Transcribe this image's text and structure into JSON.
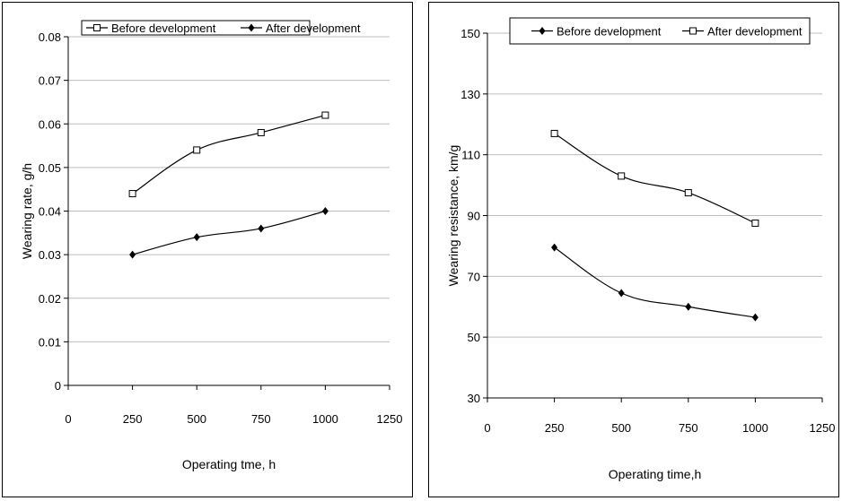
{
  "chart_data": [
    {
      "type": "line",
      "xlabel": "Operating tme, h",
      "ylabel": "Wearing rate, g/h",
      "xlim": [
        0,
        1250
      ],
      "ylim": [
        0,
        0.08
      ],
      "x_ticks": [
        "0",
        "250",
        "500",
        "750",
        "1000",
        "1250"
      ],
      "y_ticks": [
        "0",
        "0.01",
        "0.02",
        "0.03",
        "0.04",
        "0.05",
        "0.06",
        "0.07",
        "0.08"
      ],
      "grid": "horizontal",
      "legend_position": "top",
      "series": [
        {
          "name": "Before development",
          "marker": "open-square",
          "x": [
            250,
            500,
            750,
            1000
          ],
          "values": [
            0.044,
            0.054,
            0.058,
            0.062
          ]
        },
        {
          "name": "After development",
          "marker": "filled-diamond",
          "x": [
            250,
            500,
            750,
            1000
          ],
          "values": [
            0.03,
            0.034,
            0.036,
            0.04
          ]
        }
      ]
    },
    {
      "type": "line",
      "xlabel": "Operating time,h",
      "ylabel": "Wearing resistance, km/g",
      "xlim": [
        0,
        1250
      ],
      "ylim": [
        30,
        150
      ],
      "x_ticks": [
        "0",
        "250",
        "500",
        "750",
        "1000",
        "1250"
      ],
      "y_ticks": [
        "30",
        "50",
        "70",
        "90",
        "110",
        "130",
        "150"
      ],
      "grid": "horizontal",
      "legend_position": "top",
      "series": [
        {
          "name": "Before development",
          "marker": "filled-diamond",
          "x": [
            250,
            500,
            750,
            1000
          ],
          "values": [
            79.5,
            64.5,
            60,
            56.5
          ]
        },
        {
          "name": "After development",
          "marker": "open-square",
          "x": [
            250,
            500,
            750,
            1000
          ],
          "values": [
            117,
            103,
            97.5,
            87.5
          ]
        }
      ]
    }
  ]
}
